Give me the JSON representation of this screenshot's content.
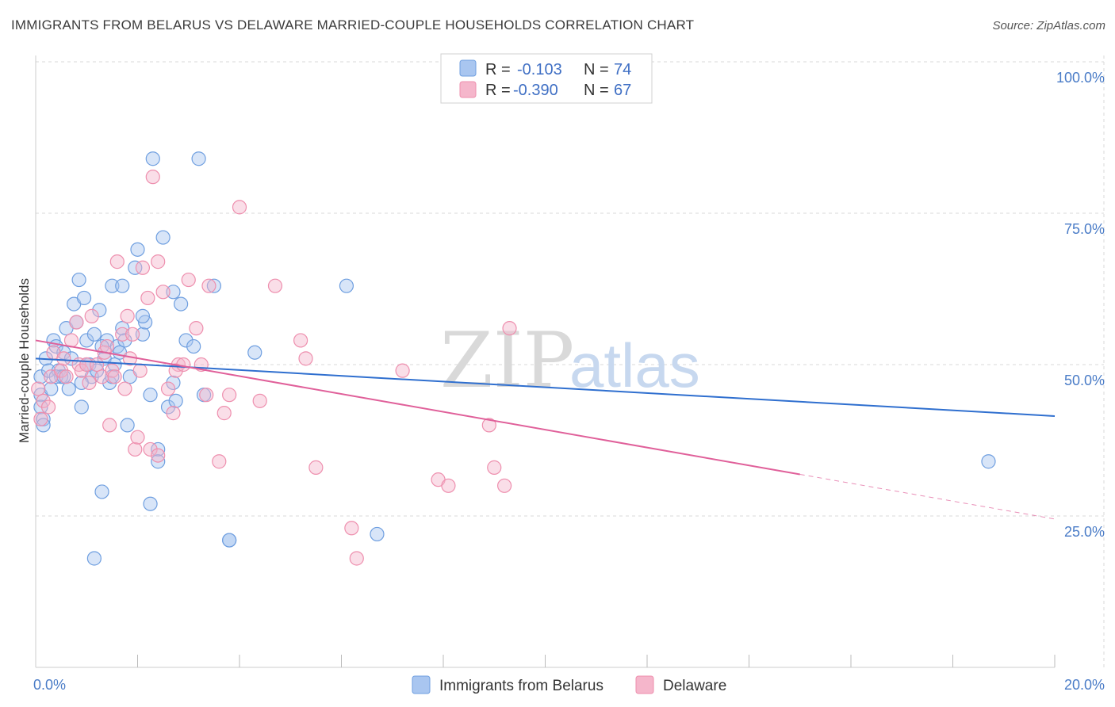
{
  "title": "IMMIGRANTS FROM BELARUS VS DELAWARE MARRIED-COUPLE HOUSEHOLDS CORRELATION CHART",
  "source": "Source: ZipAtlas.com",
  "watermark": {
    "zip": "ZIP",
    "atlas": "atlas"
  },
  "colors": {
    "blue_fill": "#a9c6f0",
    "blue_stroke": "#6f9fe0",
    "blue_line": "#2f6fcf",
    "pink_fill": "#f5b6cb",
    "pink_stroke": "#ee8fae",
    "pink_line": "#e0609a",
    "grid": "#d8d8d8",
    "axis_text": "#4a7cc7"
  },
  "legend": {
    "rows": [
      {
        "r_label": "R = ",
        "r_value": "-0.103",
        "n_label": "N = ",
        "n_value": "74"
      },
      {
        "r_label": "R = ",
        "r_value": "-0.390",
        "n_label": "N = ",
        "n_value": "67"
      }
    ]
  },
  "chart_data": {
    "type": "scatter",
    "title": "IMMIGRANTS FROM BELARUS VS DELAWARE MARRIED-COUPLE HOUSEHOLDS CORRELATION CHART",
    "xlabel": "",
    "ylabel": "Married-couple Households",
    "xlim": [
      0,
      20
    ],
    "ylim": [
      0,
      105
    ],
    "x_tick_labels": [
      {
        "x": 0,
        "label": "0.0%"
      },
      {
        "x": 20,
        "label": "20.0%"
      }
    ],
    "x_minor_ticks": [
      2,
      4,
      6,
      8,
      10,
      12,
      14,
      16,
      18,
      20
    ],
    "y_ticks": [
      {
        "y": 25,
        "label": "25.0%"
      },
      {
        "y": 50,
        "label": "50.0%"
      },
      {
        "y": 75,
        "label": "75.0%"
      },
      {
        "y": 100,
        "label": "100.0%"
      }
    ],
    "series": [
      {
        "name": "Immigrants from Belarus",
        "color": "blue",
        "trend": {
          "x0": 0,
          "y0": 51.0,
          "x1": 20,
          "y1": 41.5,
          "dash_from": null
        },
        "points": [
          [
            0.1,
            48
          ],
          [
            0.1,
            45
          ],
          [
            0.1,
            43
          ],
          [
            0.15,
            41
          ],
          [
            0.2,
            51
          ],
          [
            0.25,
            49
          ],
          [
            0.3,
            46
          ],
          [
            0.35,
            54
          ],
          [
            0.4,
            53
          ],
          [
            0.45,
            49
          ],
          [
            0.5,
            48
          ],
          [
            0.55,
            52
          ],
          [
            0.6,
            56
          ],
          [
            0.65,
            46
          ],
          [
            0.7,
            51
          ],
          [
            0.75,
            60
          ],
          [
            0.8,
            57
          ],
          [
            0.85,
            64
          ],
          [
            0.9,
            43
          ],
          [
            0.95,
            61
          ],
          [
            1.0,
            54
          ],
          [
            1.05,
            50
          ],
          [
            1.1,
            48
          ],
          [
            1.15,
            55
          ],
          [
            1.2,
            49
          ],
          [
            1.25,
            59
          ],
          [
            1.3,
            29
          ],
          [
            1.35,
            51
          ],
          [
            1.4,
            54
          ],
          [
            1.45,
            47
          ],
          [
            1.55,
            50
          ],
          [
            1.6,
            53
          ],
          [
            1.65,
            52
          ],
          [
            1.7,
            56
          ],
          [
            1.75,
            54
          ],
          [
            1.8,
            40
          ],
          [
            1.85,
            48
          ],
          [
            1.95,
            66
          ],
          [
            2.0,
            69
          ],
          [
            2.1,
            55
          ],
          [
            2.15,
            57
          ],
          [
            2.25,
            45
          ],
          [
            2.3,
            84
          ],
          [
            2.4,
            36
          ],
          [
            2.5,
            71
          ],
          [
            2.6,
            43
          ],
          [
            2.7,
            47
          ],
          [
            2.75,
            44
          ],
          [
            2.85,
            60
          ],
          [
            2.95,
            54
          ],
          [
            3.1,
            53
          ],
          [
            3.2,
            84
          ],
          [
            3.3,
            45
          ],
          [
            3.5,
            63
          ],
          [
            3.8,
            21
          ],
          [
            4.3,
            52
          ],
          [
            6.1,
            63
          ],
          [
            6.7,
            22
          ],
          [
            2.25,
            27
          ],
          [
            2.4,
            34
          ],
          [
            1.15,
            18
          ],
          [
            3.8,
            21
          ],
          [
            0.4,
            48
          ],
          [
            0.55,
            48
          ],
          [
            1.0,
            50
          ],
          [
            1.5,
            48
          ],
          [
            1.5,
            63
          ],
          [
            1.7,
            63
          ],
          [
            2.1,
            58
          ],
          [
            2.7,
            62
          ],
          [
            0.9,
            47
          ],
          [
            1.3,
            53
          ],
          [
            18.7,
            34
          ],
          [
            0.15,
            40
          ]
        ]
      },
      {
        "name": "Delaware",
        "color": "pink",
        "trend": {
          "x0": 0,
          "y0": 54.0,
          "x1": 20,
          "y1": 24.5,
          "dash_from": 15
        },
        "points": [
          [
            0.05,
            46
          ],
          [
            0.1,
            41
          ],
          [
            0.15,
            44
          ],
          [
            0.25,
            43
          ],
          [
            0.3,
            48
          ],
          [
            0.35,
            52
          ],
          [
            0.5,
            49
          ],
          [
            0.55,
            51
          ],
          [
            0.6,
            48
          ],
          [
            0.7,
            54
          ],
          [
            0.8,
            57
          ],
          [
            0.85,
            50
          ],
          [
            0.9,
            49
          ],
          [
            1.0,
            50
          ],
          [
            1.05,
            47
          ],
          [
            1.1,
            58
          ],
          [
            1.2,
            50
          ],
          [
            1.3,
            48
          ],
          [
            1.35,
            52
          ],
          [
            1.45,
            40
          ],
          [
            1.5,
            49
          ],
          [
            1.55,
            48
          ],
          [
            1.6,
            67
          ],
          [
            1.7,
            55
          ],
          [
            1.75,
            46
          ],
          [
            1.8,
            58
          ],
          [
            1.9,
            55
          ],
          [
            1.95,
            36
          ],
          [
            2.0,
            38
          ],
          [
            2.05,
            49
          ],
          [
            2.1,
            66
          ],
          [
            2.2,
            61
          ],
          [
            2.25,
            36
          ],
          [
            2.3,
            81
          ],
          [
            2.4,
            67
          ],
          [
            2.5,
            62
          ],
          [
            2.6,
            46
          ],
          [
            2.7,
            42
          ],
          [
            2.8,
            50
          ],
          [
            3.0,
            64
          ],
          [
            3.15,
            56
          ],
          [
            3.25,
            50
          ],
          [
            3.35,
            45
          ],
          [
            3.4,
            63
          ],
          [
            3.6,
            34
          ],
          [
            3.8,
            45
          ],
          [
            4.0,
            76
          ],
          [
            4.4,
            44
          ],
          [
            4.7,
            63
          ],
          [
            5.2,
            54
          ],
          [
            5.3,
            51
          ],
          [
            5.5,
            33
          ],
          [
            6.2,
            23
          ],
          [
            6.3,
            18
          ],
          [
            7.2,
            49
          ],
          [
            7.9,
            31
          ],
          [
            8.1,
            30
          ],
          [
            8.9,
            40
          ],
          [
            9.0,
            33
          ],
          [
            9.2,
            30
          ],
          [
            9.3,
            56
          ],
          [
            2.75,
            49
          ],
          [
            2.9,
            50
          ],
          [
            1.85,
            51
          ],
          [
            2.4,
            35
          ],
          [
            1.4,
            53
          ],
          [
            3.7,
            42
          ]
        ]
      }
    ]
  },
  "bottom_legend": [
    {
      "label": "Immigrants from Belarus",
      "color": "blue"
    },
    {
      "label": "Delaware",
      "color": "pink"
    }
  ]
}
